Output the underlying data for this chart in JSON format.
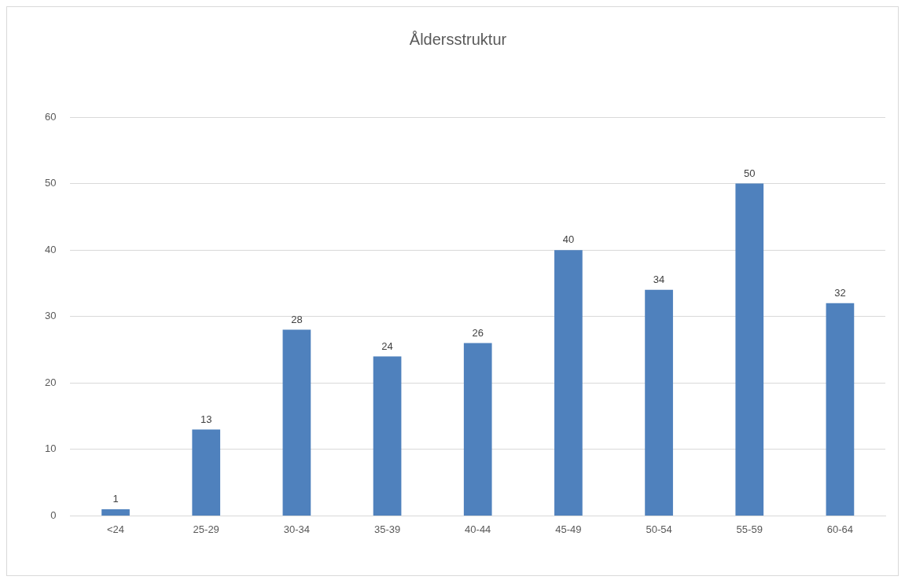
{
  "chart_data": {
    "type": "bar",
    "title": "Åldersstruktur",
    "categories": [
      "<24",
      "25-29",
      "30-34",
      "35-39",
      "40-44",
      "45-49",
      "50-54",
      "55-59",
      "60-64"
    ],
    "values": [
      1,
      13,
      28,
      24,
      26,
      40,
      34,
      50,
      32
    ],
    "color": "#4f81bd",
    "ylim": [
      0,
      60
    ],
    "yticks": [
      0,
      10,
      20,
      30,
      40,
      50,
      60
    ],
    "grid": "y",
    "data_labels": true,
    "legend": false
  }
}
